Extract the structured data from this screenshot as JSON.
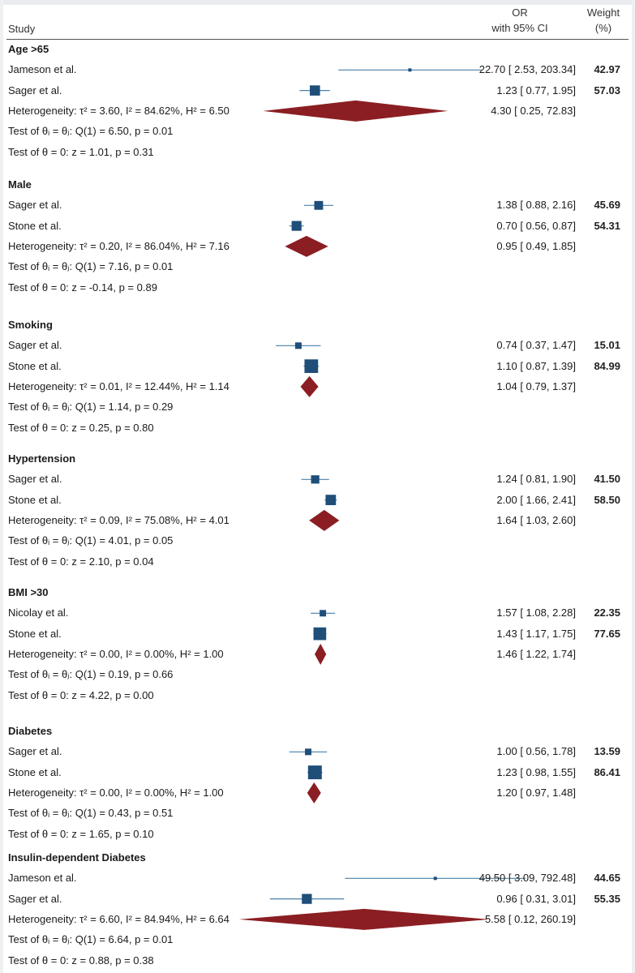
{
  "header": {
    "study_label": "Study",
    "or_label_line1": "OR",
    "or_label_line2": "with 95% CI",
    "weight_label_line1": "Weight",
    "weight_label_line2": "(%)"
  },
  "colors": {
    "study_marker": "#1f4e79",
    "summary_diamond": "#8b1e23",
    "ci_line": "#4a7fa8"
  },
  "chart_data": {
    "type": "forest",
    "x_scale": "log",
    "groups": [
      {
        "title": "Age >65",
        "studies": [
          {
            "name": "Jameson et al.",
            "or": 22.7,
            "lo": 2.53,
            "hi": 203.34,
            "or_text": "22.70 [ 2.53,  203.34]",
            "weight": "42.97",
            "weight_value": 42.97
          },
          {
            "name": "Sager et al.",
            "or": 1.23,
            "lo": 0.77,
            "hi": 1.95,
            "or_text": "1.23 [ 0.77,    1.95]",
            "weight": "57.03",
            "weight_value": 57.03
          }
        ],
        "summary": {
          "label": "Heterogeneity: τ² = 3.60, I² = 84.62%, H² = 6.50",
          "or": 4.3,
          "lo": 0.25,
          "hi": 72.83,
          "or_text": "4.30 [ 0.25,   72.83]"
        },
        "test_het": "Test of θᵢ = θⱼ: Q(1) = 6.50, p = 0.01",
        "test_overall": "Test of θ = 0: z = 1.01, p = 0.31"
      },
      {
        "title": "Male",
        "studies": [
          {
            "name": "Sager et al.",
            "or": 1.38,
            "lo": 0.88,
            "hi": 2.16,
            "or_text": "1.38 [ 0.88,    2.16]",
            "weight": "45.69",
            "weight_value": 45.69
          },
          {
            "name": "Stone et al.",
            "or": 0.7,
            "lo": 0.56,
            "hi": 0.87,
            "or_text": "0.70 [ 0.56,    0.87]",
            "weight": "54.31",
            "weight_value": 54.31
          }
        ],
        "summary": {
          "label": "Heterogeneity: τ² = 0.20, I² = 86.04%, H² = 7.16",
          "or": 0.95,
          "lo": 0.49,
          "hi": 1.85,
          "or_text": "0.95 [ 0.49,    1.85]"
        },
        "test_het": "Test of θᵢ = θⱼ: Q(1) = 7.16, p = 0.01",
        "test_overall": "Test of θ = 0: z = -0.14, p = 0.89"
      },
      {
        "title": "Smoking",
        "studies": [
          {
            "name": "Sager et al.",
            "or": 0.74,
            "lo": 0.37,
            "hi": 1.47,
            "or_text": "0.74 [ 0.37,    1.47]",
            "weight": "15.01",
            "weight_value": 15.01
          },
          {
            "name": "Stone et al.",
            "or": 1.1,
            "lo": 0.87,
            "hi": 1.39,
            "or_text": "1.10 [ 0.87,    1.39]",
            "weight": "84.99",
            "weight_value": 84.99
          }
        ],
        "summary": {
          "label": "Heterogeneity: τ² = 0.01, I² = 12.44%, H² = 1.14",
          "or": 1.04,
          "lo": 0.79,
          "hi": 1.37,
          "or_text": "1.04 [ 0.79,    1.37]"
        },
        "test_het": "Test of θᵢ = θⱼ: Q(1) = 1.14, p = 0.29",
        "test_overall": "Test of θ = 0: z = 0.25, p = 0.80"
      },
      {
        "title": "Hypertension",
        "studies": [
          {
            "name": "Sager et al.",
            "or": 1.24,
            "lo": 0.81,
            "hi": 1.9,
            "or_text": "1.24 [ 0.81,    1.90]",
            "weight": "41.50",
            "weight_value": 41.5
          },
          {
            "name": "Stone et al.",
            "or": 2.0,
            "lo": 1.66,
            "hi": 2.41,
            "or_text": "2.00 [ 1.66,    2.41]",
            "weight": "58.50",
            "weight_value": 58.5
          }
        ],
        "summary": {
          "label": "Heterogeneity: τ² = 0.09, I² = 75.08%, H² = 4.01",
          "or": 1.64,
          "lo": 1.03,
          "hi": 2.6,
          "or_text": "1.64 [ 1.03,    2.60]"
        },
        "test_het": "Test of θᵢ = θⱼ: Q(1) = 4.01, p = 0.05",
        "test_overall": "Test of θ = 0: z = 2.10, p = 0.04"
      },
      {
        "title": "BMI >30",
        "studies": [
          {
            "name": "Nicolay et al.",
            "or": 1.57,
            "lo": 1.08,
            "hi": 2.28,
            "or_text": "1.57 [ 1.08,    2.28]",
            "weight": "22.35",
            "weight_value": 22.35
          },
          {
            "name": "Stone et al.",
            "or": 1.43,
            "lo": 1.17,
            "hi": 1.75,
            "or_text": "1.43 [ 1.17,    1.75]",
            "weight": "77.65",
            "weight_value": 77.65
          }
        ],
        "summary": {
          "label": "Heterogeneity: τ² = 0.00, I² = 0.00%, H² = 1.00",
          "or": 1.46,
          "lo": 1.22,
          "hi": 1.74,
          "or_text": "1.46 [ 1.22,    1.74]"
        },
        "test_het": "Test of θᵢ = θⱼ: Q(1) = 0.19, p = 0.66",
        "test_overall": "Test of θ = 0: z = 4.22, p = 0.00"
      },
      {
        "title": "Diabetes",
        "studies": [
          {
            "name": "Sager et al.",
            "or": 1.0,
            "lo": 0.56,
            "hi": 1.78,
            "or_text": "1.00 [ 0.56,    1.78]",
            "weight": "13.59",
            "weight_value": 13.59
          },
          {
            "name": "Stone et al.",
            "or": 1.23,
            "lo": 0.98,
            "hi": 1.55,
            "or_text": "1.23 [ 0.98,    1.55]",
            "weight": "86.41",
            "weight_value": 86.41
          }
        ],
        "summary": {
          "label": "Heterogeneity: τ² = 0.00, I² = 0.00%, H² = 1.00",
          "or": 1.2,
          "lo": 0.97,
          "hi": 1.48,
          "or_text": "1.20 [ 0.97,    1.48]"
        },
        "test_het": "Test of θᵢ = θⱼ: Q(1) = 0.43, p = 0.51",
        "test_overall": "Test of θ = 0: z = 1.65, p = 0.10"
      },
      {
        "title": "Insulin-dependent Diabetes",
        "studies": [
          {
            "name": "Jameson et al.",
            "or": 49.5,
            "lo": 3.09,
            "hi": 792.48,
            "or_text": "49.50 [ 3.09,  792.48]",
            "weight": "44.65",
            "weight_value": 44.65
          },
          {
            "name": "Sager et al.",
            "or": 0.96,
            "lo": 0.31,
            "hi": 3.01,
            "or_text": "0.96 [ 0.31,    3.01]",
            "weight": "55.35",
            "weight_value": 55.35
          }
        ],
        "summary": {
          "label": "Heterogeneity: τ² = 6.60, I² = 84.94%, H² = 6.64",
          "or": 5.58,
          "lo": 0.12,
          "hi": 260.19,
          "or_text": "5.58 [ 0.12,  260.19]"
        },
        "test_het": "Test of θᵢ = θⱼ: Q(1) = 6.64, p = 0.01",
        "test_overall": "Test of θ = 0: z = 0.88, p = 0.38"
      }
    ]
  }
}
